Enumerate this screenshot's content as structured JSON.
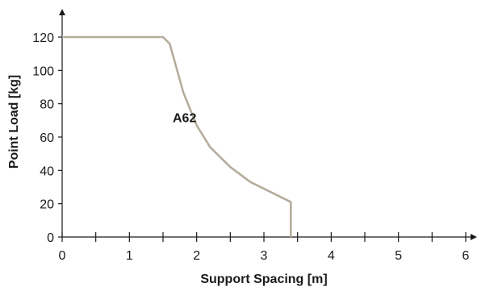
{
  "chart_data": {
    "type": "line",
    "title": "",
    "xlabel": "Support Spacing [m]",
    "ylabel": "Point Load [kg]",
    "xlim": [
      0,
      6
    ],
    "ylim": [
      0,
      120
    ],
    "x_ticks": [
      0,
      1,
      2,
      3,
      4,
      5,
      6
    ],
    "y_ticks": [
      0,
      20,
      40,
      60,
      80,
      100,
      120
    ],
    "grid": false,
    "series": [
      {
        "name": "A62",
        "color": "#b5ad9c",
        "x": [
          0,
          1.5,
          1.6,
          1.8,
          2.0,
          2.2,
          2.5,
          2.8,
          3.0,
          3.4,
          3.4
        ],
        "y": [
          120,
          120,
          116,
          87,
          67,
          54,
          42,
          33,
          29,
          21,
          0
        ]
      }
    ],
    "colors": {
      "axis": "#1a1a1a",
      "series": "#b5ad9c"
    }
  }
}
